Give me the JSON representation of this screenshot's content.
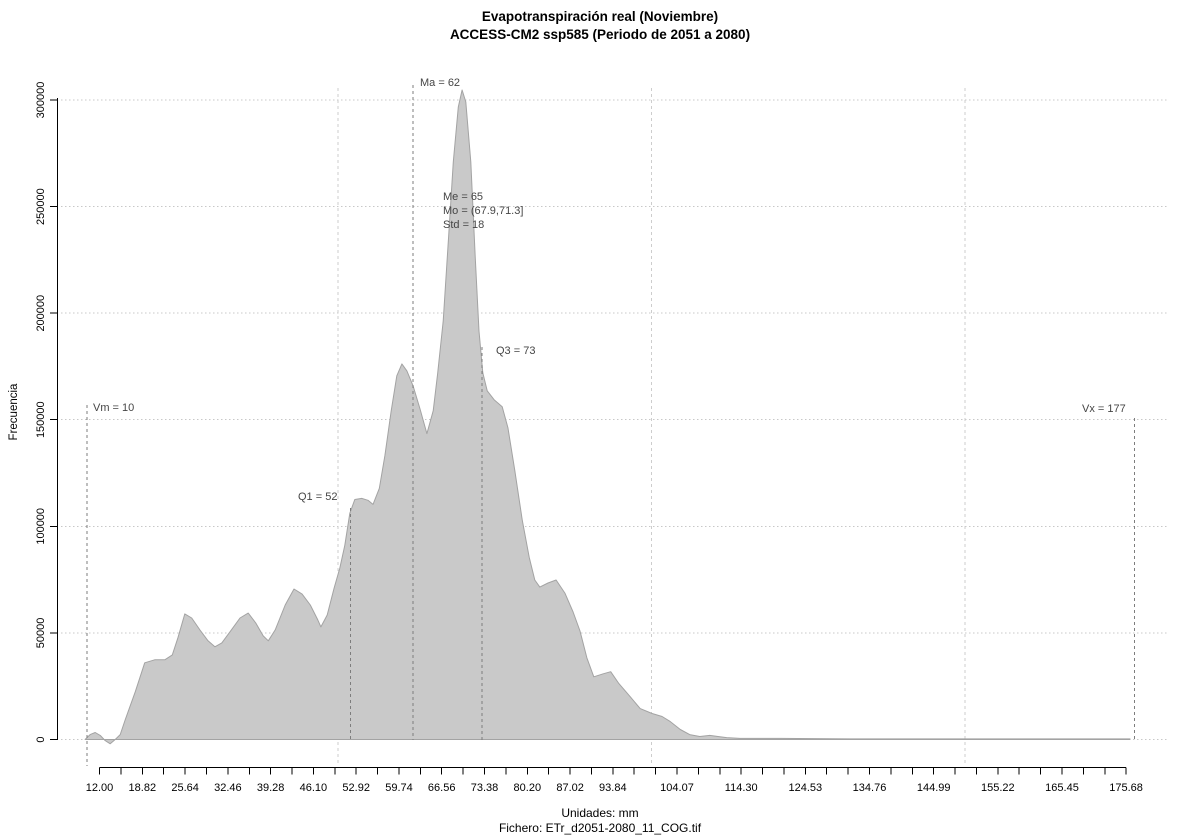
{
  "title": {
    "line1": "Evapotranspiración real (Noviembre)",
    "line2": "ACCESS-CM2 ssp585 (Periodo de 2051 a 2080)"
  },
  "footer": {
    "units": "Unidades: mm",
    "file": "Fichero: ETr_d2051-2080_11_COG.tif"
  },
  "y_axis": {
    "label": "Frecuencia",
    "ticks": [
      0,
      50000,
      100000,
      150000,
      200000,
      250000,
      300000
    ]
  },
  "x_axis": {
    "tick_start": 12.0,
    "tick_step": 3.41,
    "tick_count": 49,
    "labels": [
      "12.00",
      "18.82",
      "25.64",
      "32.46",
      "39.28",
      "46.10",
      "52.92",
      "59.74",
      "66.56",
      "73.38",
      "80.20",
      "87.02",
      "93.84",
      "104.07",
      "114.30",
      "124.53",
      "134.76",
      "144.99",
      "155.22",
      "165.45",
      "175.68"
    ]
  },
  "annotations": {
    "vm": "Vm = 10",
    "q1": "Q1 = 52",
    "ma": "Ma = 62",
    "me": "Me = 65",
    "mo": "Mo = (67.9,71.3]",
    "std": "Std = 18",
    "q3": "Q3 = 73",
    "vx": "Vx = 177"
  },
  "colors": {
    "fill": "#c9c9c9",
    "outline": "#a3a3a3",
    "grid": "#c8c8c8",
    "ref_line": "#cdcdcd",
    "stat_line": "#7d7d7d",
    "axis": "#000000",
    "annotation": "#454545"
  },
  "chart_data": {
    "type": "area",
    "title": "Evapotranspiración real (Noviembre)",
    "subtitle": "ACCESS-CM2 ssp585 (Periodo de 2051 a 2080)",
    "xlabel": "Unidades: mm",
    "ylabel": "Frecuencia",
    "xlim": [
      10,
      179
    ],
    "ylim": [
      0,
      305000
    ],
    "grid": "horizontal-dotted",
    "legend": "none",
    "stats": {
      "min": 10,
      "q1": 52,
      "mean": 62,
      "median": 65,
      "mode_bin": "(67.9,71.3]",
      "std": 18,
      "q3": 73,
      "max": 177
    },
    "reference_lines": [
      50,
      100,
      150
    ],
    "stat_lines": [
      {
        "id": "vm",
        "value": 10
      },
      {
        "id": "q1",
        "value": 52
      },
      {
        "id": "ma",
        "value": 62
      },
      {
        "id": "q3",
        "value": 73
      },
      {
        "id": "vx",
        "value": 177
      }
    ],
    "points": [
      [
        9.7,
        0
      ],
      [
        10.5,
        2300
      ],
      [
        11.3,
        3300
      ],
      [
        12.1,
        1900
      ],
      [
        12.9,
        -500
      ],
      [
        13.7,
        -2000
      ],
      [
        14.5,
        0
      ],
      [
        15.3,
        2300
      ],
      [
        16.1,
        9400
      ],
      [
        17.7,
        22400
      ],
      [
        19.2,
        36000
      ],
      [
        20.8,
        37400
      ],
      [
        22.4,
        37400
      ],
      [
        23.6,
        39700
      ],
      [
        24.5,
        47700
      ],
      [
        25.6,
        58900
      ],
      [
        26.7,
        57000
      ],
      [
        28.0,
        51400
      ],
      [
        29.3,
        46300
      ],
      [
        30.4,
        43500
      ],
      [
        31.5,
        45300
      ],
      [
        32.8,
        50500
      ],
      [
        34.4,
        57000
      ],
      [
        35.7,
        59300
      ],
      [
        36.9,
        54700
      ],
      [
        38.1,
        48600
      ],
      [
        38.9,
        46300
      ],
      [
        40.0,
        51400
      ],
      [
        41.6,
        63100
      ],
      [
        43.0,
        70600
      ],
      [
        44.3,
        68200
      ],
      [
        45.6,
        63100
      ],
      [
        46.8,
        56100
      ],
      [
        47.3,
        52800
      ],
      [
        48.3,
        58400
      ],
      [
        49.4,
        71000
      ],
      [
        50.3,
        80400
      ],
      [
        51.1,
        91100
      ],
      [
        51.9,
        106100
      ],
      [
        52.7,
        112600
      ],
      [
        53.8,
        113100
      ],
      [
        54.8,
        112200
      ],
      [
        55.6,
        110300
      ],
      [
        56.6,
        117800
      ],
      [
        57.5,
        133200
      ],
      [
        58.5,
        154200
      ],
      [
        59.4,
        170600
      ],
      [
        60.2,
        176200
      ],
      [
        61.0,
        172900
      ],
      [
        62.0,
        165900
      ],
      [
        63.1,
        155100
      ],
      [
        64.2,
        143500
      ],
      [
        65.2,
        154200
      ],
      [
        65.9,
        171500
      ],
      [
        66.8,
        196300
      ],
      [
        67.6,
        233600
      ],
      [
        68.4,
        271000
      ],
      [
        69.2,
        296700
      ],
      [
        69.8,
        304700
      ],
      [
        70.4,
        299100
      ],
      [
        71.2,
        271000
      ],
      [
        71.9,
        226600
      ],
      [
        72.5,
        191600
      ],
      [
        73.1,
        172000
      ],
      [
        73.8,
        163600
      ],
      [
        74.9,
        159400
      ],
      [
        76.2,
        156100
      ],
      [
        77.1,
        146300
      ],
      [
        78.2,
        126200
      ],
      [
        79.4,
        102800
      ],
      [
        80.5,
        85500
      ],
      [
        81.4,
        74800
      ],
      [
        82.2,
        71500
      ],
      [
        83.5,
        73400
      ],
      [
        84.8,
        74800
      ],
      [
        86.2,
        68700
      ],
      [
        87.5,
        59800
      ],
      [
        88.6,
        50900
      ],
      [
        89.7,
        38300
      ],
      [
        90.8,
        29400
      ],
      [
        92.3,
        30800
      ],
      [
        93.5,
        31800
      ],
      [
        94.8,
        26200
      ],
      [
        96.6,
        20100
      ],
      [
        98.2,
        14500
      ],
      [
        100.1,
        12200
      ],
      [
        101.7,
        10800
      ],
      [
        103.0,
        8400
      ],
      [
        104.6,
        4700
      ],
      [
        106.1,
        2300
      ],
      [
        107.7,
        1400
      ],
      [
        109.3,
        1900
      ],
      [
        110.6,
        1400
      ],
      [
        112.0,
        900
      ],
      [
        114.1,
        500
      ],
      [
        120.5,
        500
      ],
      [
        131.6,
        300
      ],
      [
        147.6,
        300
      ],
      [
        163.5,
        300
      ],
      [
        176.3,
        300
      ]
    ]
  }
}
